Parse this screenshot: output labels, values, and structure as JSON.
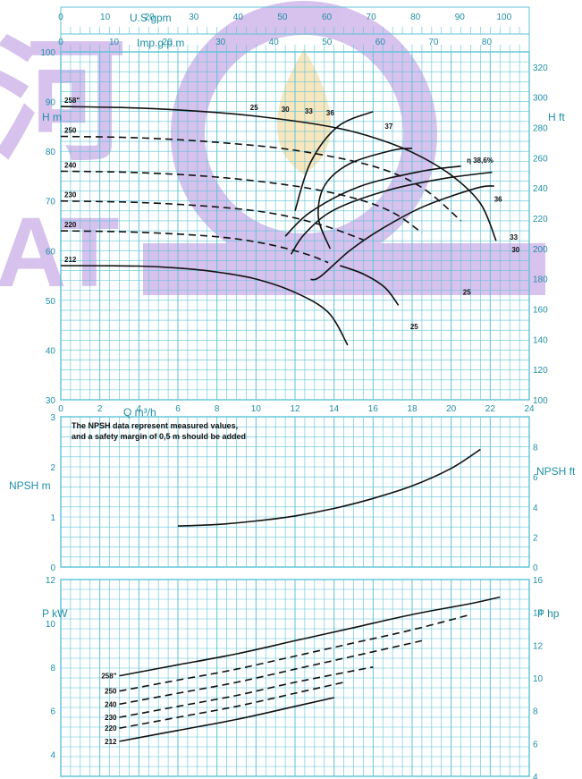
{
  "colors": {
    "grid": "#5cc3d8",
    "tick_text": "#1f8fa6",
    "curve": "#111111",
    "watermark_purple": "#b88fe0",
    "watermark_gold": "#f3d58a"
  },
  "watermark": {
    "text_left": "河",
    "text_left2": "AT"
  },
  "top_axes": {
    "usgpm_label": "U.S.gpm",
    "usgpm_ticks": [
      "0",
      "10",
      "20",
      "30",
      "40",
      "50",
      "60",
      "70",
      "80",
      "90",
      "100"
    ],
    "impgpm_label": "Imp.g.p.m",
    "impgpm_ticks": [
      "0",
      "10",
      "20",
      "30",
      "40",
      "50",
      "60",
      "70",
      "80"
    ]
  },
  "q_axis": {
    "label": "Q m³/h",
    "ticks": [
      "0",
      "2",
      "4",
      "6",
      "8",
      "10",
      "12",
      "14",
      "16",
      "18",
      "20",
      "22",
      "24"
    ]
  },
  "note": {
    "line1": "The NPSH data represent measured values,",
    "line2": "and a safety margin of 0,5 m should be added"
  },
  "chart_data": [
    {
      "type": "line",
      "panel": "head",
      "ylabel": "H m",
      "ylabel_right": "H ft",
      "xlim": [
        0,
        24
      ],
      "ylim": [
        30,
        100
      ],
      "yticks_left": [
        "100",
        "90",
        "80",
        "70",
        "60",
        "50",
        "40",
        "30"
      ],
      "ylim_right": [
        100,
        330
      ],
      "yticks_right": [
        "320",
        "300",
        "280",
        "260",
        "240",
        "220",
        "200",
        "180",
        "160",
        "140",
        "120",
        "100"
      ],
      "impeller_labels": [
        "258\"",
        "250",
        "240",
        "230",
        "220",
        "212"
      ],
      "series": [
        {
          "name": "258\"",
          "style": "solid",
          "x": [
            0,
            4,
            8,
            11,
            14,
            16,
            18,
            20,
            21.5,
            22.3
          ],
          "y": [
            89,
            88.7,
            87.8,
            86.6,
            84.8,
            82.8,
            79.8,
            75.2,
            69.5,
            62
          ]
        },
        {
          "name": "250",
          "style": "dashed",
          "x": [
            0,
            4,
            8,
            12,
            16,
            18.5,
            20.5
          ],
          "y": [
            83,
            82.7,
            81.8,
            80.2,
            77,
            72.7,
            66
          ]
        },
        {
          "name": "240",
          "style": "dashed",
          "x": [
            0,
            4,
            8,
            12,
            15,
            17,
            18.5
          ],
          "y": [
            76,
            75.7,
            74.8,
            73,
            70.6,
            67.7,
            63.6
          ]
        },
        {
          "name": "230",
          "style": "dashed",
          "x": [
            0,
            4,
            8,
            11,
            13.5,
            15.5
          ],
          "y": [
            70,
            69.7,
            68.8,
            67.4,
            65,
            62.2
          ]
        },
        {
          "name": "220",
          "style": "dashed",
          "x": [
            0,
            4,
            8,
            10.5,
            12.5,
            13.7
          ],
          "y": [
            64,
            63.7,
            62.8,
            61.4,
            59.4,
            57.6
          ]
        },
        {
          "name": "212",
          "style": "solid",
          "x": [
            0,
            4,
            6,
            8,
            10,
            12,
            13.7,
            14.7
          ],
          "y": [
            57,
            56.9,
            56.5,
            55.7,
            54.3,
            51.6,
            47.6,
            41
          ]
        }
      ],
      "efficiency_curves": [
        {
          "name": "25",
          "x": [
            14.3,
            15.5,
            16.6,
            17.3
          ],
          "y": [
            57,
            55.3,
            52.6,
            49
          ]
        },
        {
          "name": "25",
          "x": [
            13.8,
            13.2,
            13.5,
            14.8,
            17,
            18
          ],
          "y": [
            60.4,
            66.6,
            73,
            77.5,
            80.2,
            80.6
          ]
        },
        {
          "name": "30",
          "x": [
            12.8,
            13.3,
            14.8,
            16.4,
            18.6,
            21.3,
            22.2
          ],
          "y": [
            54.2,
            54.8,
            60,
            64.3,
            68.9,
            72.6,
            73
          ]
        },
        {
          "name": "33",
          "x": [
            11.8,
            12.5,
            14,
            16.8,
            19.6,
            22.1
          ],
          "y": [
            59.3,
            63.4,
            68.2,
            72.2,
            74.5,
            75.8
          ]
        },
        {
          "name": "36",
          "x": [
            11.5,
            12.8,
            15.3,
            18.5,
            20.5
          ],
          "y": [
            62.9,
            67.8,
            72.9,
            76,
            77
          ]
        },
        {
          "name": "37",
          "x": [
            12,
            12.8,
            14.2,
            16
          ],
          "y": [
            68,
            77.8,
            85,
            88
          ]
        }
      ],
      "efficiency_labels": [
        {
          "label": "25",
          "x": 9.7,
          "y": 88.3
        },
        {
          "label": "30",
          "x": 11.3,
          "y": 87.9
        },
        {
          "label": "33",
          "x": 12.5,
          "y": 87.6
        },
        {
          "label": "36",
          "x": 13.6,
          "y": 87.2
        },
        {
          "label": "37",
          "x": 16.6,
          "y": 84.5
        },
        {
          "label": "η 38,6%",
          "x": 20.8,
          "y": 77.7
        },
        {
          "label": "36",
          "x": 22.2,
          "y": 69.9
        },
        {
          "label": "33",
          "x": 23,
          "y": 62.2
        },
        {
          "label": "30",
          "x": 23.1,
          "y": 59.7
        },
        {
          "label": "25",
          "x": 20.6,
          "y": 51.1
        },
        {
          "label": "25",
          "x": 17.9,
          "y": 44.2
        }
      ]
    },
    {
      "type": "line",
      "panel": "npsh",
      "ylabel": "NPSH m",
      "ylabel_right": "NPSH ft",
      "xlim": [
        0,
        24
      ],
      "ylim": [
        0,
        3
      ],
      "yticks_left": [
        "3",
        "2",
        "1",
        "0"
      ],
      "ylim_right": [
        0,
        10
      ],
      "yticks_right": [
        "8",
        "6",
        "4",
        "2",
        "0"
      ],
      "series": [
        {
          "name": "",
          "x": [
            6,
            8,
            10,
            12,
            14,
            16,
            18,
            20,
            21.5
          ],
          "y": [
            0.82,
            0.85,
            0.92,
            1.02,
            1.17,
            1.37,
            1.62,
            1.97,
            2.35
          ]
        }
      ]
    },
    {
      "type": "line",
      "panel": "power",
      "ylabel": "P kW",
      "ylabel_right": "P hp",
      "xlim": [
        0,
        24
      ],
      "ylim": [
        3,
        12
      ],
      "yticks_left": [
        "12",
        "10",
        "8",
        "6",
        "4"
      ],
      "ylim_right": [
        4,
        16
      ],
      "yticks_right": [
        "16",
        "14",
        "12",
        "10",
        "8",
        "6",
        "4"
      ],
      "impeller_labels": [
        "258\"",
        "250",
        "240",
        "230",
        "220",
        "212"
      ],
      "series": [
        {
          "name": "258\"",
          "style": "solid",
          "x": [
            3,
            6,
            9,
            12,
            15,
            18,
            21,
            22.5
          ],
          "y": [
            7.6,
            8.1,
            8.6,
            9.2,
            9.8,
            10.4,
            10.9,
            11.2
          ]
        },
        {
          "name": "250",
          "style": "dashed",
          "x": [
            3,
            6,
            9,
            12,
            15,
            18,
            21
          ],
          "y": [
            6.9,
            7.4,
            7.9,
            8.5,
            9.1,
            9.7,
            10.4
          ]
        },
        {
          "name": "240",
          "style": "dashed",
          "x": [
            3,
            6,
            9,
            12,
            15,
            18.5
          ],
          "y": [
            6.3,
            6.8,
            7.3,
            7.9,
            8.5,
            9.2
          ]
        },
        {
          "name": "230",
          "style": "dashed",
          "x": [
            3,
            6,
            9,
            12,
            16
          ],
          "y": [
            5.7,
            6.2,
            6.7,
            7.3,
            8.0
          ]
        },
        {
          "name": "220",
          "style": "dashed",
          "x": [
            3,
            6,
            9,
            12,
            14.5
          ],
          "y": [
            5.2,
            5.7,
            6.2,
            6.8,
            7.3
          ]
        },
        {
          "name": "212",
          "style": "solid",
          "x": [
            3,
            6,
            9,
            12,
            14
          ],
          "y": [
            4.6,
            5.1,
            5.6,
            6.2,
            6.6
          ]
        }
      ]
    }
  ]
}
